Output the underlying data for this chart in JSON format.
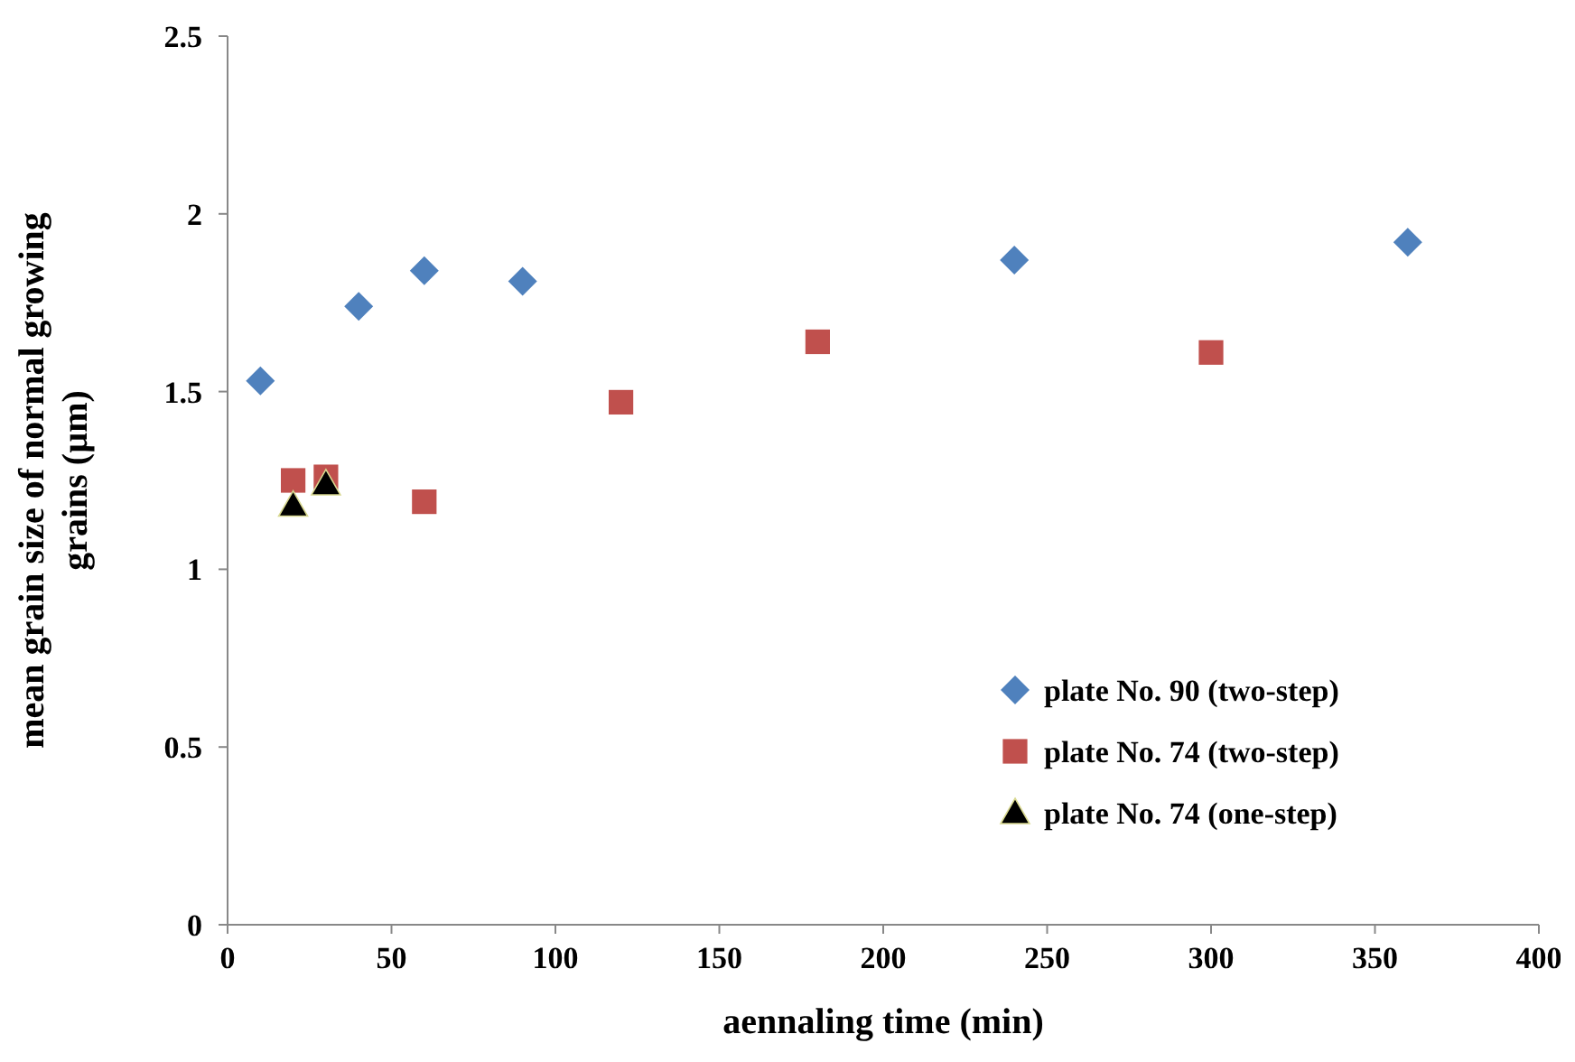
{
  "chart_data": {
    "type": "scatter",
    "xlabel": "aennaling time (min)",
    "ylabel": "mean grain size of normal growing\ngrains (µm)",
    "xlim": [
      0,
      400
    ],
    "xticks": [
      0,
      50,
      100,
      150,
      200,
      250,
      300,
      350,
      400
    ],
    "ylim": [
      0,
      2.5
    ],
    "yticks": [
      0,
      0.5,
      1,
      1.5,
      2,
      2.5
    ],
    "grid": false,
    "legend": "bottom right",
    "series": [
      {
        "name": "plate No. 90 (two-step)",
        "color": "#4f81bd",
        "marker": "diamond",
        "x": [
          10,
          40,
          60,
          90,
          240,
          360
        ],
        "values": [
          1.53,
          1.74,
          1.84,
          1.81,
          1.87,
          1.92
        ]
      },
      {
        "name": "plate No. 74 (two-step)",
        "color": "#c0504d",
        "marker": "square",
        "x": [
          20,
          30,
          60,
          120,
          180,
          300
        ],
        "values": [
          1.25,
          1.26,
          1.19,
          1.47,
          1.64,
          1.61
        ]
      },
      {
        "name": "plate No. 74 (one-step)",
        "color": "#000000",
        "marker": "triangle",
        "x": [
          20,
          30
        ],
        "values": [
          1.18,
          1.24
        ]
      }
    ]
  }
}
